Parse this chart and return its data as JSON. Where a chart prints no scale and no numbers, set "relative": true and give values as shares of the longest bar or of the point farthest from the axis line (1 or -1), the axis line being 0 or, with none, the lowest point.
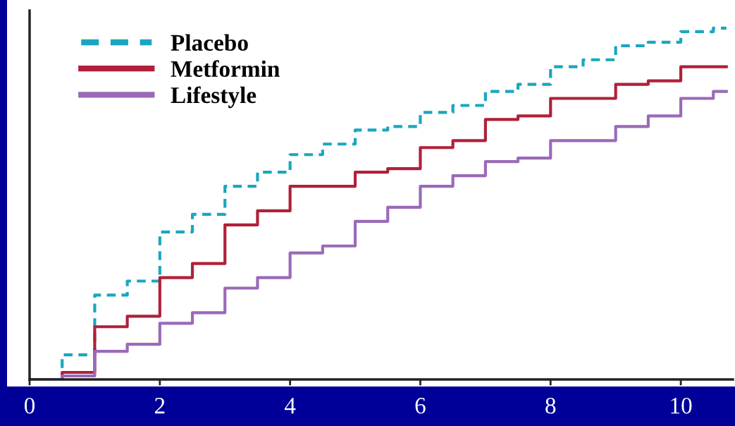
{
  "chart_data": {
    "type": "step",
    "relative": true,
    "xlim": [
      0,
      10.8
    ],
    "xticks": [
      0,
      2,
      4,
      6,
      8,
      10
    ],
    "legend": "top left",
    "grid": false,
    "series": [
      {
        "name": "Placebo",
        "color": "#1aa6c0",
        "line_style": "dashed",
        "x": [
          0,
          0.5,
          1,
          1.5,
          2,
          2.5,
          3,
          3.5,
          4,
          4.5,
          5,
          5.5,
          6,
          6.5,
          7,
          7.5,
          8,
          8.5,
          9,
          9.5,
          10,
          10.5,
          10.7
        ],
        "values": [
          0,
          0.07,
          0.24,
          0.28,
          0.42,
          0.47,
          0.55,
          0.59,
          0.64,
          0.67,
          0.71,
          0.72,
          0.76,
          0.78,
          0.82,
          0.84,
          0.89,
          0.91,
          0.95,
          0.96,
          0.99,
          1.0,
          1.0
        ]
      },
      {
        "name": "Metformin",
        "color": "#b0203a",
        "line_style": "solid",
        "x": [
          0,
          0.5,
          1,
          1.5,
          2,
          2.5,
          3,
          3.5,
          4,
          4.5,
          5,
          5.5,
          6,
          6.5,
          7,
          7.5,
          8,
          8.5,
          9,
          9.5,
          10,
          10.7
        ],
        "values": [
          0,
          0.02,
          0.15,
          0.18,
          0.29,
          0.33,
          0.44,
          0.48,
          0.55,
          0.55,
          0.59,
          0.6,
          0.66,
          0.68,
          0.74,
          0.75,
          0.8,
          0.8,
          0.84,
          0.85,
          0.89,
          0.89
        ]
      },
      {
        "name": "Lifestyle",
        "color": "#9a6ab8",
        "line_style": "solid",
        "x": [
          0,
          0.5,
          1,
          1.5,
          2,
          2.5,
          3,
          3.5,
          4,
          4.5,
          5,
          5.5,
          6,
          6.5,
          7,
          7.5,
          8,
          8.5,
          9,
          9.5,
          10,
          10.5,
          10.7
        ],
        "values": [
          0,
          0.01,
          0.08,
          0.1,
          0.16,
          0.19,
          0.26,
          0.29,
          0.36,
          0.38,
          0.45,
          0.49,
          0.55,
          0.58,
          0.62,
          0.63,
          0.68,
          0.68,
          0.72,
          0.75,
          0.8,
          0.82,
          0.82
        ]
      }
    ]
  }
}
